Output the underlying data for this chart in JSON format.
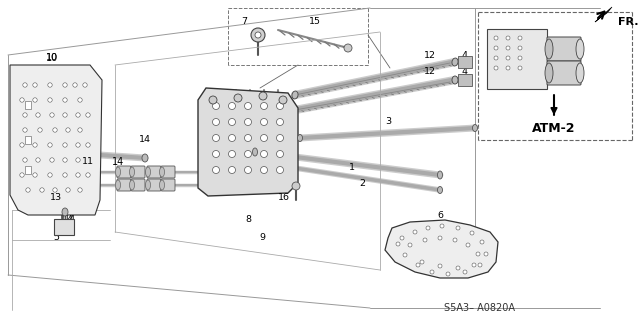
{
  "bg_color": "#ffffff",
  "diagram_code": "S5A3– A0820A",
  "fr_label": "FR.",
  "atm_label": "ATM-2",
  "line_color": "#333333",
  "lc": "#222222"
}
